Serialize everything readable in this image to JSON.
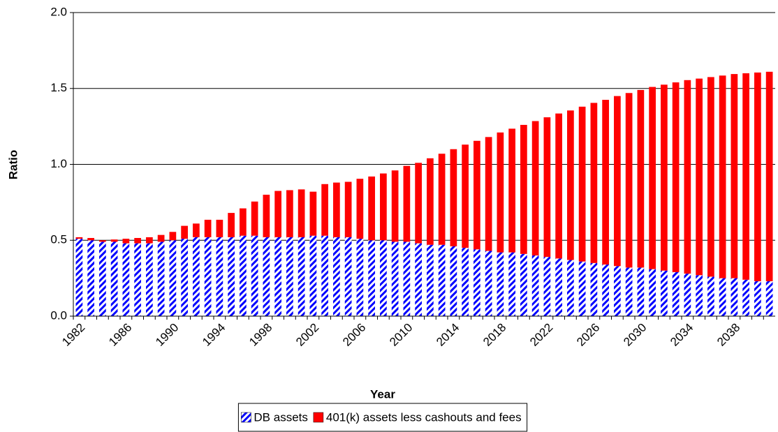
{
  "chart_data": {
    "type": "stacked_bar",
    "x_label": "Year",
    "y_label": "Ratio",
    "categories": [
      "1982",
      null,
      null,
      null,
      "1986",
      null,
      null,
      null,
      "1990",
      null,
      null,
      null,
      "1994",
      null,
      null,
      null,
      "1998",
      null,
      null,
      null,
      "2002",
      null,
      null,
      null,
      "2006",
      null,
      null,
      null,
      "2010",
      null,
      null,
      null,
      "2014",
      null,
      null,
      null,
      "2018",
      null,
      null,
      null,
      "2022",
      null,
      null,
      null,
      "2026",
      null,
      null,
      null,
      "2030",
      null,
      null,
      null,
      "2034",
      null,
      null,
      null,
      "2038",
      null,
      null,
      null
    ],
    "series": [
      {
        "name": "DB assets",
        "color": "#0000ff",
        "pattern": "hatch",
        "values": [
          0.51,
          0.5,
          0.49,
          0.49,
          0.48,
          0.48,
          0.48,
          0.49,
          0.5,
          0.51,
          0.52,
          0.52,
          0.52,
          0.52,
          0.53,
          0.53,
          0.52,
          0.52,
          0.52,
          0.52,
          0.53,
          0.53,
          0.52,
          0.52,
          0.51,
          0.5,
          0.5,
          0.49,
          0.49,
          0.48,
          0.47,
          0.47,
          0.46,
          0.45,
          0.44,
          0.43,
          0.42,
          0.42,
          0.41,
          0.4,
          0.39,
          0.38,
          0.37,
          0.36,
          0.35,
          0.34,
          0.33,
          0.32,
          0.32,
          0.31,
          0.3,
          0.29,
          0.28,
          0.27,
          0.26,
          0.25,
          0.25,
          0.24,
          0.23,
          0.23
        ]
      },
      {
        "name": "401(k) assets less cashouts and fees",
        "color": "#ff0000",
        "pattern": "solid",
        "values": [
          0.01,
          0.015,
          0.01,
          0.015,
          0.03,
          0.035,
          0.04,
          0.045,
          0.055,
          0.085,
          0.09,
          0.115,
          0.115,
          0.16,
          0.18,
          0.225,
          0.28,
          0.305,
          0.31,
          0.315,
          0.29,
          0.34,
          0.36,
          0.365,
          0.395,
          0.42,
          0.44,
          0.47,
          0.5,
          0.53,
          0.57,
          0.6,
          0.64,
          0.68,
          0.715,
          0.75,
          0.79,
          0.815,
          0.85,
          0.885,
          0.92,
          0.955,
          0.985,
          1.02,
          1.055,
          1.085,
          1.12,
          1.15,
          1.17,
          1.2,
          1.225,
          1.25,
          1.275,
          1.295,
          1.315,
          1.335,
          1.345,
          1.36,
          1.375,
          1.38
        ]
      }
    ],
    "ylim": [
      0,
      2
    ],
    "yticks": [
      {
        "value": 0,
        "label": "0.0"
      },
      {
        "value": 0.5,
        "label": "0.5"
      },
      {
        "value": 1,
        "label": "1.0"
      },
      {
        "value": 1.5,
        "label": "1.5"
      },
      {
        "value": 2,
        "label": "2.0"
      }
    ],
    "grid": true,
    "legend": "bottom"
  }
}
